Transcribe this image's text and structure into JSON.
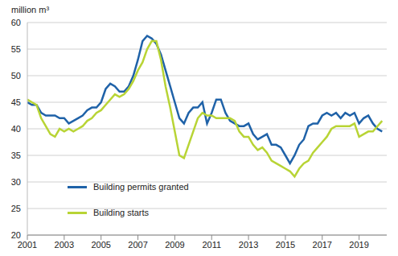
{
  "chart_data": {
    "type": "line",
    "y_label": "million m³",
    "x": [
      2001,
      2001.25,
      2001.5,
      2001.75,
      2002,
      2002.25,
      2002.5,
      2002.75,
      2003,
      2003.25,
      2003.5,
      2003.75,
      2004,
      2004.25,
      2004.5,
      2004.75,
      2005,
      2005.25,
      2005.5,
      2005.75,
      2006,
      2006.25,
      2006.5,
      2006.75,
      2007,
      2007.25,
      2007.5,
      2007.75,
      2008,
      2008.25,
      2008.5,
      2008.75,
      2009,
      2009.25,
      2009.5,
      2009.75,
      2010,
      2010.25,
      2010.5,
      2010.75,
      2011,
      2011.25,
      2011.5,
      2011.75,
      2012,
      2012.25,
      2012.5,
      2012.75,
      2013,
      2013.25,
      2013.5,
      2013.75,
      2014,
      2014.25,
      2014.5,
      2014.75,
      2015,
      2015.25,
      2015.5,
      2015.75,
      2016,
      2016.25,
      2016.5,
      2016.75,
      2017,
      2017.25,
      2017.5,
      2017.75,
      2018,
      2018.25,
      2018.5,
      2018.75,
      2019,
      2019.25,
      2019.5,
      2019.75,
      2020,
      2020.25
    ],
    "series": [
      {
        "name": "Building permits granted",
        "color": "#1f62a8",
        "values": [
          45,
          44.5,
          44.5,
          43,
          42.5,
          42.5,
          42.5,
          42,
          42,
          41,
          41.5,
          42,
          42.5,
          43.5,
          44,
          44,
          45,
          47.5,
          48.5,
          48,
          47,
          47,
          48,
          50,
          53,
          56.5,
          57.5,
          57,
          56,
          54,
          51,
          48,
          45,
          42,
          41,
          43,
          44,
          44,
          45,
          41,
          43,
          45.5,
          45.5,
          43,
          41.5,
          41,
          40.5,
          40.5,
          41,
          39,
          38,
          38.5,
          39,
          37,
          37,
          36.5,
          35,
          33.5,
          35,
          37,
          38,
          40.5,
          41,
          41,
          42.5,
          43,
          42.5,
          43,
          42,
          43,
          42.5,
          43,
          41,
          42,
          42.5,
          41,
          40,
          39.5
        ]
      },
      {
        "name": "Building starts",
        "color": "#b8d435",
        "values": [
          45.5,
          45,
          44.5,
          42,
          40.5,
          39,
          38.5,
          40,
          39.5,
          40,
          39.5,
          40,
          40.5,
          41.5,
          42,
          43,
          43.5,
          44.5,
          45.5,
          46.5,
          46,
          46.5,
          47.5,
          49,
          51,
          52.5,
          55,
          56.5,
          56.5,
          53,
          48,
          44,
          39.5,
          35,
          34.5,
          37,
          39.5,
          42,
          43,
          42.5,
          42.5,
          42,
          42,
          42,
          42,
          41.5,
          39.5,
          38.5,
          38.5,
          37,
          36,
          36.5,
          35.5,
          34,
          33.5,
          33,
          32.5,
          32,
          31,
          32.5,
          33.5,
          34,
          35.5,
          36.5,
          37.5,
          38.5,
          40,
          40.5,
          40.5,
          40.5,
          40.5,
          41,
          38.5,
          39,
          39.5,
          39.5,
          40.5,
          41.5
        ]
      }
    ],
    "xlim": [
      2001,
      2020.5
    ],
    "xticks": [
      2001,
      2003,
      2005,
      2007,
      2009,
      2011,
      2013,
      2015,
      2017,
      2019
    ],
    "ylim": [
      20,
      60
    ],
    "yticks": [
      20,
      25,
      30,
      35,
      40,
      45,
      50,
      55,
      60
    ],
    "grid": true,
    "legend": "lower left"
  }
}
